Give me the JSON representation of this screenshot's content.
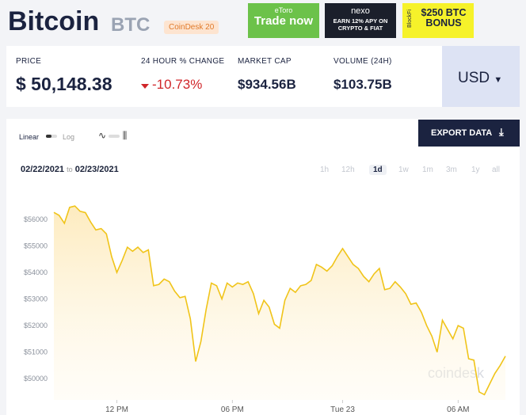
{
  "header": {
    "title": "Bitcoin",
    "symbol": "BTC",
    "badge": "CoinDesk 20"
  },
  "ads": {
    "etoro_logo": "eToro",
    "etoro_text": "Trade now",
    "nexo_logo": "nexo",
    "nexo_text": "EARN 12% APY ON CRYPTO & FIAT",
    "blockfi_logo": "BlockFi",
    "blockfi_text": "$250 BTC BONUS"
  },
  "stats": [
    {
      "label": "PRICE",
      "value": "$ 50,148.38"
    },
    {
      "label": "24 HOUR % CHANGE",
      "value": "-10.73%"
    },
    {
      "label": "MARKET CAP",
      "value": "$934.56B"
    },
    {
      "label": "VOLUME (24H)",
      "value": "$103.75B"
    }
  ],
  "currency": "USD",
  "controls": {
    "scales": [
      "Linear",
      "Log"
    ],
    "export": "EXPORT DATA",
    "date_from": "02/22/2021",
    "date_sep": "to",
    "date_to": "02/23/2021",
    "ranges": [
      "1h",
      "12h",
      "1d",
      "1w",
      "1m",
      "3m",
      "1y",
      "all"
    ],
    "active_range": "1d"
  },
  "chart_data": {
    "type": "line",
    "watermark": "coindesk",
    "categories": [
      null,
      null,
      null,
      null,
      null,
      null,
      null,
      null,
      null,
      null,
      null,
      null,
      "12 PM",
      null,
      null,
      null,
      null,
      null,
      null,
      null,
      null,
      null,
      null,
      null,
      null,
      null,
      null,
      null,
      null,
      null,
      null,
      null,
      null,
      null,
      "06 PM",
      null,
      null,
      null,
      null,
      null,
      null,
      null,
      null,
      null,
      null,
      null,
      null,
      null,
      null,
      null,
      null,
      null,
      null,
      null,
      null,
      "Tue 23",
      null,
      null,
      null,
      null,
      null,
      null,
      null,
      null,
      null,
      null,
      null,
      null,
      null,
      null,
      null,
      null,
      null,
      null,
      null,
      null,
      null,
      "06 AM",
      null,
      null,
      null,
      null,
      null,
      null,
      null,
      null,
      null
    ],
    "series": [
      {
        "name": "BTC",
        "color": "#f0c419",
        "values": [
          56260,
          56150,
          55850,
          56450,
          56500,
          56300,
          56250,
          55900,
          55600,
          55650,
          55450,
          54600,
          54000,
          54450,
          54950,
          54800,
          54950,
          54750,
          54850,
          53500,
          53550,
          53750,
          53650,
          53300,
          53050,
          53100,
          52250,
          50650,
          51400,
          52600,
          53600,
          53500,
          53000,
          53600,
          53450,
          53600,
          53550,
          53650,
          53200,
          52450,
          52950,
          52700,
          52050,
          51900,
          52950,
          53400,
          53250,
          53500,
          53550,
          53700,
          54300,
          54200,
          54050,
          54250,
          54600,
          54900,
          54600,
          54300,
          54150,
          53850,
          53650,
          53950,
          54150,
          53350,
          53400,
          53650,
          53450,
          53200,
          52800,
          52850,
          52500,
          52000,
          51600,
          51000,
          52200,
          51850,
          51500,
          52000,
          51900,
          50750,
          50700,
          49500,
          49400,
          49800,
          50200,
          50500,
          50850
        ]
      }
    ],
    "ylim": [
      49200,
      57100
    ],
    "yticks": [
      {
        "value": 50000,
        "label": "$50000"
      },
      {
        "value": 51000,
        "label": "$51000"
      },
      {
        "value": 52000,
        "label": "$52000"
      },
      {
        "value": 53000,
        "label": "$53000"
      },
      {
        "value": 54000,
        "label": "$54000"
      },
      {
        "value": 55000,
        "label": "$55000"
      },
      {
        "value": 56000,
        "label": "$56000"
      }
    ],
    "grid": false
  }
}
